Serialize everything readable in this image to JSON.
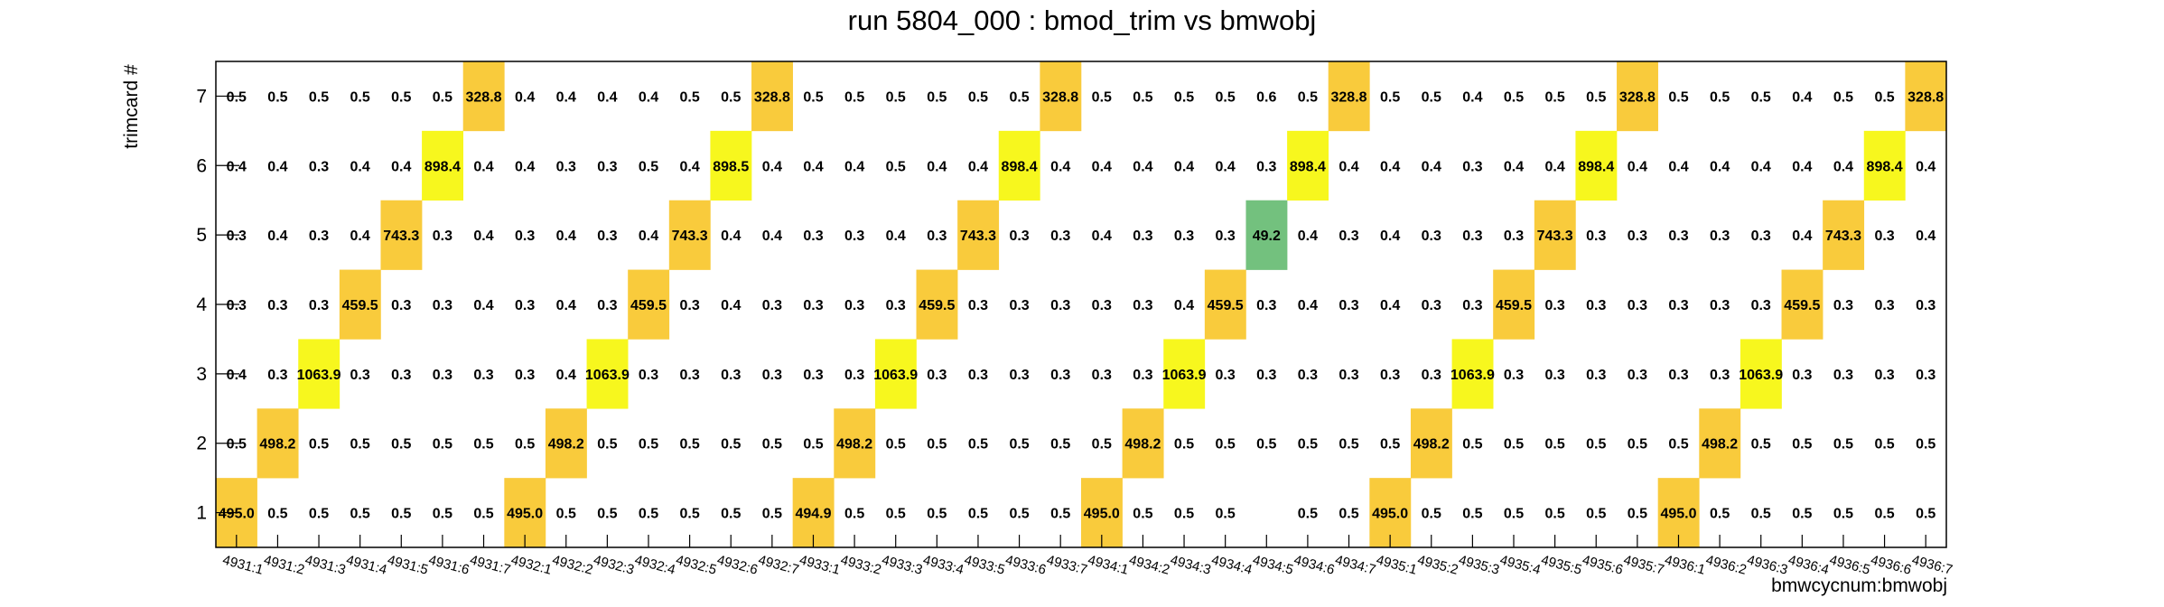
{
  "chart_data": {
    "type": "heatmap",
    "title": "run 5804_000 : bmod_trim vs bmwobj",
    "xlabel": "bmwcycnum:bmwobj",
    "ylabel": "trimcard #",
    "x_categories": [
      "4931:1",
      "4931:2",
      "4931:3",
      "4931:4",
      "4931:5",
      "4931:6",
      "4931:7",
      "4932:1",
      "4932:2",
      "4932:3",
      "4932:4",
      "4932:5",
      "4932:6",
      "4932:7",
      "4933:1",
      "4933:2",
      "4933:3",
      "4933:4",
      "4933:5",
      "4933:6",
      "4933:7",
      "4934:1",
      "4934:2",
      "4934:3",
      "4934:4",
      "4934:5",
      "4934:6",
      "4934:7",
      "4935:1",
      "4935:2",
      "4935:3",
      "4935:4",
      "4935:5",
      "4935:6",
      "4935:7",
      "4936:1",
      "4936:2",
      "4936:3",
      "4936:4",
      "4936:5",
      "4936:6",
      "4936:7"
    ],
    "y_categories": [
      "1",
      "2",
      "3",
      "4",
      "5",
      "6",
      "7"
    ],
    "values": [
      [
        "495.0",
        "0.5",
        "0.5",
        "0.5",
        "0.5",
        "0.5",
        "0.5",
        "495.0",
        "0.5",
        "0.5",
        "0.5",
        "0.5",
        "0.5",
        "0.5",
        "494.9",
        "0.5",
        "0.5",
        "0.5",
        "0.5",
        "0.5",
        "0.5",
        "495.0",
        "0.5",
        "0.5",
        "0.5",
        "",
        "0.5",
        "0.5",
        "495.0",
        "0.5",
        "0.5",
        "0.5",
        "0.5",
        "0.5",
        "0.5",
        "495.0",
        "0.5",
        "0.5",
        "0.5",
        "0.5",
        "0.5",
        "0.5"
      ],
      [
        "0.5",
        "498.2",
        "0.5",
        "0.5",
        "0.5",
        "0.5",
        "0.5",
        "0.5",
        "498.2",
        "0.5",
        "0.5",
        "0.5",
        "0.5",
        "0.5",
        "0.5",
        "498.2",
        "0.5",
        "0.5",
        "0.5",
        "0.5",
        "0.5",
        "0.5",
        "498.2",
        "0.5",
        "0.5",
        "0.5",
        "0.5",
        "0.5",
        "0.5",
        "498.2",
        "0.5",
        "0.5",
        "0.5",
        "0.5",
        "0.5",
        "0.5",
        "498.2",
        "0.5",
        "0.5",
        "0.5",
        "0.5",
        "0.5"
      ],
      [
        "0.4",
        "0.3",
        "1063.9",
        "0.3",
        "0.3",
        "0.3",
        "0.3",
        "0.3",
        "0.4",
        "1063.9",
        "0.3",
        "0.3",
        "0.3",
        "0.3",
        "0.3",
        "0.3",
        "1063.9",
        "0.3",
        "0.3",
        "0.3",
        "0.3",
        "0.3",
        "0.3",
        "1063.9",
        "0.3",
        "0.3",
        "0.3",
        "0.3",
        "0.3",
        "0.3",
        "1063.9",
        "0.3",
        "0.3",
        "0.3",
        "0.3",
        "0.3",
        "0.3",
        "1063.9",
        "0.3",
        "0.3",
        "0.3",
        "0.3"
      ],
      [
        "0.3",
        "0.3",
        "0.3",
        "459.5",
        "0.3",
        "0.3",
        "0.4",
        "0.3",
        "0.4",
        "0.3",
        "459.5",
        "0.3",
        "0.4",
        "0.3",
        "0.3",
        "0.3",
        "0.3",
        "459.5",
        "0.3",
        "0.3",
        "0.3",
        "0.3",
        "0.3",
        "0.4",
        "459.5",
        "0.3",
        "0.4",
        "0.3",
        "0.4",
        "0.3",
        "0.3",
        "459.5",
        "0.3",
        "0.3",
        "0.3",
        "0.3",
        "0.3",
        "0.3",
        "459.5",
        "0.3",
        "0.3",
        "0.3"
      ],
      [
        "0.3",
        "0.4",
        "0.3",
        "0.4",
        "743.3",
        "0.3",
        "0.4",
        "0.3",
        "0.4",
        "0.3",
        "0.4",
        "743.3",
        "0.4",
        "0.4",
        "0.3",
        "0.3",
        "0.4",
        "0.3",
        "743.3",
        "0.3",
        "0.3",
        "0.4",
        "0.3",
        "0.3",
        "0.3",
        "49.2",
        "0.4",
        "0.3",
        "0.4",
        "0.3",
        "0.3",
        "0.3",
        "743.3",
        "0.3",
        "0.3",
        "0.3",
        "0.3",
        "0.3",
        "0.4",
        "743.3",
        "0.3",
        "0.4"
      ],
      [
        "0.4",
        "0.4",
        "0.3",
        "0.4",
        "0.4",
        "898.4",
        "0.4",
        "0.4",
        "0.3",
        "0.3",
        "0.5",
        "0.4",
        "898.5",
        "0.4",
        "0.4",
        "0.4",
        "0.5",
        "0.4",
        "0.4",
        "898.4",
        "0.4",
        "0.4",
        "0.4",
        "0.4",
        "0.4",
        "0.3",
        "898.4",
        "0.4",
        "0.4",
        "0.4",
        "0.3",
        "0.4",
        "0.4",
        "898.4",
        "0.4",
        "0.4",
        "0.4",
        "0.4",
        "0.4",
        "0.4",
        "898.4",
        "0.4"
      ],
      [
        "0.5",
        "0.5",
        "0.5",
        "0.5",
        "0.5",
        "0.5",
        "328.8",
        "0.4",
        "0.4",
        "0.4",
        "0.4",
        "0.5",
        "0.5",
        "328.8",
        "0.5",
        "0.5",
        "0.5",
        "0.5",
        "0.5",
        "0.5",
        "328.8",
        "0.5",
        "0.5",
        "0.5",
        "0.5",
        "0.6",
        "0.5",
        "328.8",
        "0.5",
        "0.5",
        "0.4",
        "0.5",
        "0.5",
        "0.5",
        "328.8",
        "0.5",
        "0.5",
        "0.5",
        "0.4",
        "0.5",
        "0.5",
        "328.8"
      ]
    ],
    "colors": {
      "high": "#f7f71e",
      "mid": "#f9cb3c",
      "low": "#73c17e"
    },
    "grid": false,
    "legend": "none"
  }
}
